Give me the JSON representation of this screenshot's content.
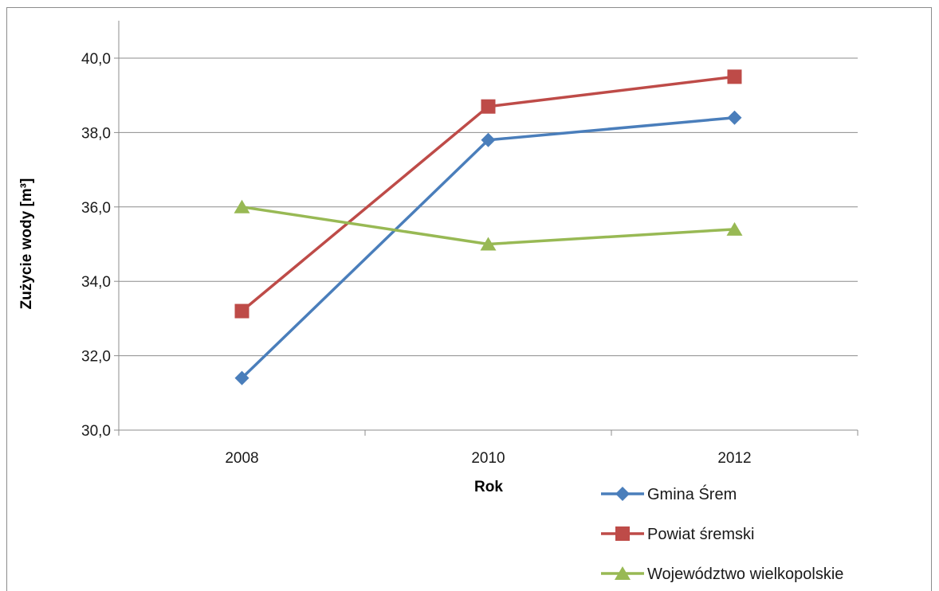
{
  "chart_data": {
    "type": "line",
    "title": "",
    "xlabel": "Rok",
    "ylabel": "Zużycie wody [m³]",
    "categories": [
      "2008",
      "2010",
      "2012"
    ],
    "ylim": [
      30,
      41
    ],
    "yticks": [
      30,
      32,
      34,
      36,
      38,
      40
    ],
    "ytick_labels": [
      "30,0",
      "32,0",
      "34,0",
      "36,0",
      "38,0",
      "40,0"
    ],
    "grid": true,
    "legend": "bottom-right",
    "series": [
      {
        "name": "Gmina Śrem",
        "values": [
          31.4,
          37.8,
          38.4
        ],
        "color": "#4a7ebb",
        "marker": "diamond"
      },
      {
        "name": "Powiat śremski",
        "values": [
          33.2,
          38.7,
          39.5
        ],
        "color": "#be4b48",
        "marker": "square"
      },
      {
        "name": "Województwo wielkopolskie",
        "values": [
          36.0,
          35.0,
          35.4
        ],
        "color": "#98b954",
        "marker": "triangle"
      }
    ]
  }
}
